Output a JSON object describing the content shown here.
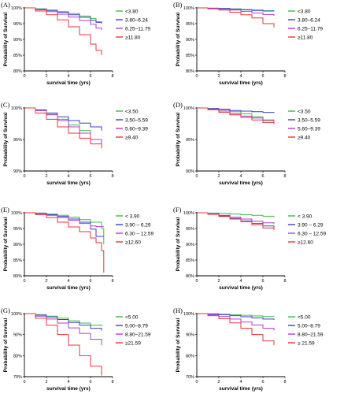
{
  "chart_data": [
    {
      "panel": "(A)",
      "type": "line",
      "xlabel": "survival time (yrs)",
      "ylabel": "Probability of Survival",
      "xlim": [
        0,
        8
      ],
      "ylim": [
        80,
        100
      ],
      "xticks": [
        0,
        2,
        4,
        6,
        8
      ],
      "yticks": [
        "80%",
        "85%",
        "90%",
        "95%",
        "100%"
      ],
      "legend": "top-right",
      "series": [
        {
          "name": "<3.80",
          "color": "#3cbd3c",
          "x": [
            0,
            1,
            2,
            3,
            4,
            5,
            6,
            6.5,
            7
          ],
          "y": [
            100,
            99.7,
            99.3,
            98.8,
            98.2,
            97.4,
            96.6,
            95.6,
            95.0
          ]
        },
        {
          "name": "3.80–6.24",
          "color": "#3b40c8",
          "x": [
            0,
            1,
            2,
            3,
            4,
            5,
            6,
            6.5,
            7
          ],
          "y": [
            100,
            99.6,
            99.2,
            98.6,
            97.8,
            97.0,
            96.0,
            95.4,
            95.0
          ]
        },
        {
          "name": "6.25–11.79",
          "color": "#b33bd0",
          "x": [
            0,
            1,
            2,
            3,
            4,
            5,
            6,
            6.5,
            7
          ],
          "y": [
            100,
            99.4,
            98.8,
            98.0,
            97.1,
            96.0,
            94.8,
            93.6,
            93.0
          ]
        },
        {
          "name": "≥11.80",
          "color": "#e8353a",
          "x": [
            0,
            1,
            2,
            3,
            4,
            5,
            6,
            6.5,
            7
          ],
          "y": [
            100,
            99.0,
            97.8,
            96.2,
            94.0,
            91.5,
            88.5,
            86.5,
            85.0
          ]
        }
      ]
    },
    {
      "panel": "(B)",
      "type": "line",
      "xlabel": "survival time (yrs)",
      "ylabel": "Probability of Survival",
      "xlim": [
        0,
        8
      ],
      "ylim": [
        80,
        100
      ],
      "xticks": [
        0,
        2,
        4,
        6,
        8
      ],
      "yticks": [
        "80%",
        "85%",
        "90%",
        "95%",
        "100%"
      ],
      "legend": "top-right",
      "series": [
        {
          "name": "<3.80",
          "color": "#3cbd3c",
          "x": [
            0,
            1,
            2,
            3,
            4,
            5,
            6,
            7
          ],
          "y": [
            100,
            99.9,
            99.8,
            99.7,
            99.5,
            99.3,
            99.1,
            99.0
          ]
        },
        {
          "name": "3.80–6.24",
          "color": "#3b40c8",
          "x": [
            0,
            1,
            2,
            3,
            4,
            5,
            6,
            7
          ],
          "y": [
            100,
            99.9,
            99.8,
            99.6,
            99.4,
            99.2,
            99.0,
            98.9
          ]
        },
        {
          "name": "6.25–11.79",
          "color": "#b33bd0",
          "x": [
            0,
            1,
            2,
            3,
            4,
            5,
            6,
            7
          ],
          "y": [
            100,
            99.8,
            99.6,
            99.3,
            98.9,
            98.4,
            97.9,
            97.5
          ]
        },
        {
          "name": "≥11.80",
          "color": "#e8353a",
          "x": [
            0,
            1,
            2,
            3,
            4,
            5,
            6,
            7
          ],
          "y": [
            100,
            99.7,
            99.3,
            98.6,
            97.8,
            96.8,
            95.0,
            93.8
          ]
        }
      ]
    },
    {
      "panel": "(C)",
      "type": "line",
      "xlabel": "survival time (yrs)",
      "ylabel": "Probability of Survival",
      "xlim": [
        0,
        8
      ],
      "ylim": [
        90,
        100
      ],
      "xticks": [
        0,
        2,
        4,
        6,
        8
      ],
      "yticks": [
        "90%",
        "95%",
        "100%"
      ],
      "legend": "top-right",
      "series": [
        {
          "name": "<3.50",
          "color": "#3cbd3c",
          "x": [
            0,
            1,
            2,
            3,
            4,
            5,
            6,
            7
          ],
          "y": [
            100,
            99.6,
            99.0,
            98.2,
            97.3,
            96.4,
            95.0,
            93.8
          ]
        },
        {
          "name": "3.50–5.59",
          "color": "#3b40c8",
          "x": [
            0,
            1,
            2,
            3,
            4,
            5,
            6,
            7
          ],
          "y": [
            100,
            99.7,
            99.2,
            98.6,
            98.0,
            97.6,
            97.0,
            96.4
          ]
        },
        {
          "name": "5.60–9.39",
          "color": "#b33bd0",
          "x": [
            0,
            1,
            2,
            3,
            4,
            5,
            6,
            7
          ],
          "y": [
            100,
            99.6,
            98.9,
            98.0,
            97.0,
            96.0,
            95.0,
            94.2
          ]
        },
        {
          "name": "≥9.40",
          "color": "#e8353a",
          "x": [
            0,
            1,
            2,
            3,
            4,
            5,
            6,
            7
          ],
          "y": [
            100,
            99.2,
            98.2,
            97.0,
            96.0,
            95.2,
            94.3,
            93.6
          ]
        }
      ]
    },
    {
      "panel": "(D)",
      "type": "line",
      "xlabel": "survival time (yrs)",
      "ylabel": "Probability of Survival",
      "xlim": [
        0,
        8
      ],
      "ylim": [
        90,
        100
      ],
      "xticks": [
        0,
        2,
        4,
        6,
        8
      ],
      "yticks": [
        "90%",
        "95%",
        "100%"
      ],
      "legend": "top-right",
      "series": [
        {
          "name": "<3.50",
          "color": "#3cbd3c",
          "x": [
            0,
            1,
            2,
            3,
            4,
            5,
            6,
            7
          ],
          "y": [
            100,
            99.9,
            99.7,
            99.4,
            99.1,
            98.6,
            98.0,
            97.6
          ]
        },
        {
          "name": "3.50–5.59",
          "color": "#3b40c8",
          "x": [
            0,
            1,
            2,
            3,
            4,
            5,
            6,
            7
          ],
          "y": [
            100,
            99.9,
            99.8,
            99.6,
            99.5,
            99.4,
            99.3,
            99.2
          ]
        },
        {
          "name": "5.60–9.39",
          "color": "#b33bd0",
          "x": [
            0,
            1,
            2,
            3,
            4,
            5,
            6,
            7
          ],
          "y": [
            100,
            99.8,
            99.5,
            99.1,
            98.7,
            98.4,
            98.1,
            97.9
          ]
        },
        {
          "name": "≥9.40",
          "color": "#e8353a",
          "x": [
            0,
            1,
            2,
            3,
            4,
            5,
            6,
            7
          ],
          "y": [
            100,
            99.7,
            99.3,
            98.9,
            98.5,
            98.1,
            97.7,
            97.4
          ]
        }
      ]
    },
    {
      "panel": "(E)",
      "type": "line",
      "xlabel": "survival time (yrs)",
      "ylabel": "Probability of Survival",
      "xlim": [
        0,
        8
      ],
      "ylim": [
        80,
        100
      ],
      "xticks": [
        0,
        2,
        4,
        6,
        8
      ],
      "yticks": [
        "80%",
        "85%",
        "90%",
        "95%",
        "100%"
      ],
      "legend": "top-right",
      "series": [
        {
          "name": "< 3.90",
          "color": "#3cbd3c",
          "x": [
            0,
            1,
            2,
            3,
            4,
            5,
            6,
            7,
            7.2
          ],
          "y": [
            100,
            99.9,
            99.6,
            99.2,
            98.6,
            97.8,
            97.0,
            95.0,
            90.0
          ]
        },
        {
          "name": "3.90 – 6.29",
          "color": "#3b40c8",
          "x": [
            0,
            1,
            2,
            3,
            4,
            5,
            6,
            6.5,
            7.2
          ],
          "y": [
            100,
            99.8,
            99.4,
            98.8,
            98.0,
            97.0,
            94.8,
            92.5,
            92.5
          ]
        },
        {
          "name": "6.30 – 12.59",
          "color": "#b33bd0",
          "x": [
            0,
            1,
            2,
            3,
            4,
            5,
            6,
            6.5,
            7.2
          ],
          "y": [
            100,
            99.7,
            99.2,
            98.5,
            97.6,
            96.6,
            95.8,
            95.6,
            95.6
          ]
        },
        {
          "name": "≥12.60",
          "color": "#e8353a",
          "x": [
            0,
            1,
            2,
            3,
            4,
            5,
            6,
            6.5,
            7,
            7.2
          ],
          "y": [
            100,
            99.4,
            98.5,
            97.0,
            95.5,
            94.0,
            92.0,
            90.5,
            88.0,
            81.0
          ]
        }
      ]
    },
    {
      "panel": "(F)",
      "type": "line",
      "xlabel": "survival time (yrs)",
      "ylabel": "Probability of Survival",
      "xlim": [
        0,
        8
      ],
      "ylim": [
        80,
        100
      ],
      "xticks": [
        0,
        2,
        4,
        6,
        8
      ],
      "yticks": [
        "80%",
        "85%",
        "90%",
        "95%",
        "100%"
      ],
      "legend": "top-right",
      "series": [
        {
          "name": "< 3.90",
          "color": "#3cbd3c",
          "x": [
            0,
            1,
            2,
            3,
            4,
            5,
            6,
            7
          ],
          "y": [
            100,
            99.9,
            99.8,
            99.6,
            99.4,
            99.2,
            98.9,
            98.6
          ]
        },
        {
          "name": "3.90 – 6.29",
          "color": "#3b40c8",
          "x": [
            0,
            1,
            2,
            3,
            4,
            5,
            6,
            7
          ],
          "y": [
            100,
            99.6,
            99.0,
            98.2,
            97.4,
            96.6,
            95.8,
            95.2
          ]
        },
        {
          "name": "6.30 – 12.59",
          "color": "#b33bd0",
          "x": [
            0,
            1,
            2,
            3,
            4,
            5,
            6,
            7
          ],
          "y": [
            100,
            99.7,
            99.2,
            98.6,
            98.0,
            97.3,
            96.8,
            96.5
          ]
        },
        {
          "name": "≥12.60",
          "color": "#e8353a",
          "x": [
            0,
            1,
            2,
            3,
            4,
            5,
            6,
            7
          ],
          "y": [
            100,
            99.5,
            98.8,
            98.0,
            97.2,
            96.2,
            95.2,
            94.5
          ]
        }
      ]
    },
    {
      "panel": "(G)",
      "type": "line",
      "xlabel": "survival time (yrs)",
      "ylabel": "Probability of Survival",
      "xlim": [
        0,
        8
      ],
      "ylim": [
        70,
        100
      ],
      "xticks": [
        0,
        2,
        4,
        6,
        8
      ],
      "yticks": [
        "70%",
        "80%",
        "90%",
        "100%"
      ],
      "legend": "top-right",
      "series": [
        {
          "name": "<5.00",
          "color": "#3cbd3c",
          "x": [
            0,
            1,
            2,
            3,
            4,
            5,
            6,
            7
          ],
          "y": [
            100,
            99.5,
            98.8,
            97.8,
            96.6,
            95.5,
            94.5,
            94.0
          ]
        },
        {
          "name": "5.00–8.79",
          "color": "#3b40c8",
          "x": [
            0,
            1,
            2,
            3,
            4,
            5,
            6,
            7
          ],
          "y": [
            100,
            99.3,
            98.4,
            97.2,
            95.8,
            94.5,
            93.0,
            92.0
          ]
        },
        {
          "name": "8.80–21.59",
          "color": "#b33bd0",
          "x": [
            0,
            1,
            2,
            3,
            4,
            5,
            6,
            7
          ],
          "y": [
            100,
            98.8,
            97.4,
            95.5,
            93.2,
            90.6,
            87.8,
            85.0
          ]
        },
        {
          "name": "≥21.59",
          "color": "#e8353a",
          "x": [
            0,
            1,
            2,
            3,
            4,
            5,
            6,
            7
          ],
          "y": [
            100,
            97.8,
            94.5,
            90.0,
            85.0,
            80.0,
            75.0,
            70.5
          ]
        }
      ]
    },
    {
      "panel": "(H)",
      "type": "line",
      "xlabel": "survival time (yrs)",
      "ylabel": "Probability of Survival",
      "xlim": [
        0,
        8
      ],
      "ylim": [
        70,
        100
      ],
      "xticks": [
        0,
        2,
        4,
        6,
        8
      ],
      "yticks": [
        "70%",
        "80%",
        "90%",
        "100%"
      ],
      "legend": "top-right",
      "series": [
        {
          "name": "<5.00",
          "color": "#3cbd3c",
          "x": [
            0,
            1,
            2,
            3,
            4,
            5,
            6,
            7
          ],
          "y": [
            100,
            99.9,
            99.7,
            99.5,
            99.2,
            98.9,
            98.6,
            98.4
          ]
        },
        {
          "name": "5.00–8.79",
          "color": "#3b40c8",
          "x": [
            0,
            1,
            2,
            3,
            4,
            5,
            6,
            7
          ],
          "y": [
            100,
            99.8,
            99.5,
            99.0,
            98.5,
            98.0,
            97.4,
            97.0
          ]
        },
        {
          "name": "8.80–21.59",
          "color": "#b33bd0",
          "x": [
            0,
            1,
            2,
            3,
            4,
            5,
            6,
            7
          ],
          "y": [
            100,
            99.5,
            98.6,
            97.4,
            96.0,
            94.6,
            93.0,
            92.0
          ]
        },
        {
          "name": "≥ 21.59",
          "color": "#e8353a",
          "x": [
            0,
            1,
            2,
            3,
            4,
            5,
            6,
            7
          ],
          "y": [
            100,
            99.0,
            97.6,
            95.6,
            93.0,
            90.0,
            87.0,
            85.0
          ]
        }
      ]
    }
  ]
}
